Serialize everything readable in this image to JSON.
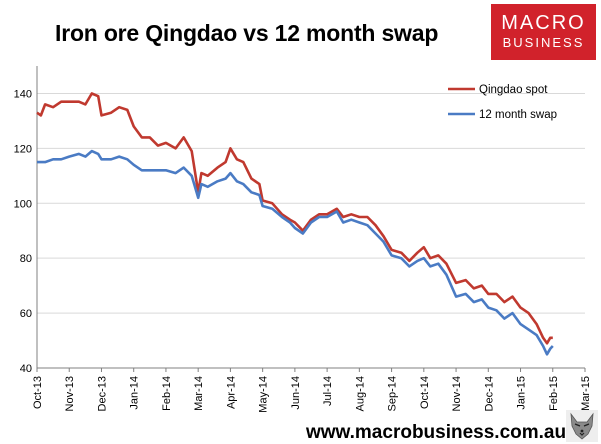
{
  "header": {
    "title": "Iron ore Qingdao vs 12 month swap",
    "logo_line1": "MACRO",
    "logo_line2": "BUSINESS",
    "website": "www.macrobusiness.com.au"
  },
  "colors": {
    "spot": "#c0392f",
    "swap": "#4a7bc4",
    "logo_bg": "#d1222b"
  },
  "icons": {
    "wolf": "wolf-logo-icon"
  },
  "chart_data": {
    "type": "line",
    "title": "Iron ore Qingdao vs 12 month swap",
    "xlabel": "",
    "ylabel": "",
    "ylim": [
      40,
      150
    ],
    "yticks": [
      40,
      60,
      80,
      100,
      120,
      140
    ],
    "xticks": [
      "Oct-13",
      "Nov-13",
      "Dec-13",
      "Jan-14",
      "Feb-14",
      "Mar-14",
      "Apr-14",
      "May-14",
      "Jun-14",
      "Jul-14",
      "Aug-14",
      "Sep-14",
      "Oct-14",
      "Nov-14",
      "Dec-14",
      "Jan-15",
      "Feb-15",
      "Mar-15"
    ],
    "grid": true,
    "legend_position": "top-right",
    "series": [
      {
        "name": "Qingdao spot",
        "color": "#c0392f",
        "points": [
          [
            "Oct-13",
            133
          ],
          [
            "Oct-13+0.12",
            132
          ],
          [
            "Oct-13+0.25",
            136
          ],
          [
            "Oct-13+0.5",
            135
          ],
          [
            "Oct-13+0.75",
            137
          ],
          [
            "Nov-13",
            137
          ],
          [
            "Nov-13+0.3",
            137
          ],
          [
            "Nov-13+0.5",
            136
          ],
          [
            "Nov-13+0.7",
            140
          ],
          [
            "Nov-13+0.9",
            139
          ],
          [
            "Dec-13",
            132
          ],
          [
            "Dec-13+0.3",
            133
          ],
          [
            "Dec-13+0.55",
            135
          ],
          [
            "Dec-13+0.8",
            134
          ],
          [
            "Jan-14",
            128
          ],
          [
            "Jan-14+0.25",
            124
          ],
          [
            "Jan-14+0.5",
            124
          ],
          [
            "Jan-14+0.75",
            121
          ],
          [
            "Feb-14",
            122
          ],
          [
            "Feb-14+0.3",
            120
          ],
          [
            "Feb-14+0.55",
            124
          ],
          [
            "Feb-14+0.8",
            119
          ],
          [
            "Mar-14",
            104
          ],
          [
            "Mar-14+0.1",
            111
          ],
          [
            "Mar-14+0.3",
            110
          ],
          [
            "Mar-14+0.6",
            113
          ],
          [
            "Mar-14+0.85",
            115
          ],
          [
            "Apr-14",
            120
          ],
          [
            "Apr-14+0.2",
            116
          ],
          [
            "Apr-14+0.4",
            115
          ],
          [
            "Apr-14+0.65",
            109
          ],
          [
            "Apr-14+0.9",
            107
          ],
          [
            "May-14",
            101
          ],
          [
            "May-14+0.3",
            100
          ],
          [
            "May-14+0.6",
            96
          ],
          [
            "May-14+0.85",
            94
          ],
          [
            "Jun-14",
            93
          ],
          [
            "Jun-14+0.25",
            90
          ],
          [
            "Jun-14+0.5",
            94
          ],
          [
            "Jun-14+0.75",
            96
          ],
          [
            "Jul-14",
            96
          ],
          [
            "Jul-14+0.3",
            98
          ],
          [
            "Jul-14+0.5",
            95
          ],
          [
            "Jul-14+0.75",
            96
          ],
          [
            "Aug-14",
            95
          ],
          [
            "Aug-14+0.25",
            95
          ],
          [
            "Aug-14+0.5",
            92
          ],
          [
            "Aug-14+0.75",
            88
          ],
          [
            "Sep-14",
            83
          ],
          [
            "Sep-14+0.3",
            82
          ],
          [
            "Sep-14+0.55",
            79
          ],
          [
            "Sep-14+0.8",
            82
          ],
          [
            "Oct-14",
            84
          ],
          [
            "Oct-14+0.2",
            80
          ],
          [
            "Oct-14+0.45",
            81
          ],
          [
            "Oct-14+0.7",
            78
          ],
          [
            "Nov-14",
            71
          ],
          [
            "Nov-14+0.3",
            72
          ],
          [
            "Nov-14+0.55",
            69
          ],
          [
            "Nov-14+0.8",
            70
          ],
          [
            "Dec-14",
            67
          ],
          [
            "Dec-14+0.25",
            67
          ],
          [
            "Dec-14+0.5",
            64
          ],
          [
            "Dec-14+0.75",
            66
          ],
          [
            "Jan-15",
            62
          ],
          [
            "Jan-15+0.25",
            60
          ],
          [
            "Jan-15+0.5",
            56
          ],
          [
            "Jan-15+0.7",
            51
          ],
          [
            "Jan-15+0.82",
            49
          ],
          [
            "Jan-15+0.92",
            51
          ],
          [
            "Feb-15",
            51
          ]
        ]
      },
      {
        "name": "12 month swap",
        "color": "#4a7bc4",
        "points": [
          [
            "Oct-13",
            115
          ],
          [
            "Oct-13+0.25",
            115
          ],
          [
            "Oct-13+0.5",
            116
          ],
          [
            "Oct-13+0.75",
            116
          ],
          [
            "Nov-13",
            117
          ],
          [
            "Nov-13+0.3",
            118
          ],
          [
            "Nov-13+0.5",
            117
          ],
          [
            "Nov-13+0.7",
            119
          ],
          [
            "Nov-13+0.9",
            118
          ],
          [
            "Dec-13",
            116
          ],
          [
            "Dec-13+0.3",
            116
          ],
          [
            "Dec-13+0.55",
            117
          ],
          [
            "Dec-13+0.8",
            116
          ],
          [
            "Jan-14",
            114
          ],
          [
            "Jan-14+0.25",
            112
          ],
          [
            "Jan-14+0.5",
            112
          ],
          [
            "Jan-14+0.75",
            112
          ],
          [
            "Feb-14",
            112
          ],
          [
            "Feb-14+0.3",
            111
          ],
          [
            "Feb-14+0.55",
            113
          ],
          [
            "Feb-14+0.8",
            110
          ],
          [
            "Mar-14",
            102
          ],
          [
            "Mar-14+0.1",
            107
          ],
          [
            "Mar-14+0.3",
            106
          ],
          [
            "Mar-14+0.6",
            108
          ],
          [
            "Mar-14+0.85",
            109
          ],
          [
            "Apr-14",
            111
          ],
          [
            "Apr-14+0.2",
            108
          ],
          [
            "Apr-14+0.4",
            107
          ],
          [
            "Apr-14+0.65",
            104
          ],
          [
            "Apr-14+0.9",
            103
          ],
          [
            "May-14",
            99
          ],
          [
            "May-14+0.3",
            98
          ],
          [
            "May-14+0.6",
            95
          ],
          [
            "May-14+0.85",
            93
          ],
          [
            "Jun-14",
            91
          ],
          [
            "Jun-14+0.25",
            89
          ],
          [
            "Jun-14+0.5",
            93
          ],
          [
            "Jun-14+0.75",
            95
          ],
          [
            "Jul-14",
            95
          ],
          [
            "Jul-14+0.3",
            97
          ],
          [
            "Jul-14+0.5",
            93
          ],
          [
            "Jul-14+0.75",
            94
          ],
          [
            "Aug-14",
            93
          ],
          [
            "Aug-14+0.25",
            92
          ],
          [
            "Aug-14+0.5",
            89
          ],
          [
            "Aug-14+0.75",
            86
          ],
          [
            "Sep-14",
            81
          ],
          [
            "Sep-14+0.3",
            80
          ],
          [
            "Sep-14+0.55",
            77
          ],
          [
            "Sep-14+0.8",
            79
          ],
          [
            "Oct-14",
            80
          ],
          [
            "Oct-14+0.2",
            77
          ],
          [
            "Oct-14+0.45",
            78
          ],
          [
            "Oct-14+0.7",
            74
          ],
          [
            "Nov-14",
            66
          ],
          [
            "Nov-14+0.3",
            67
          ],
          [
            "Nov-14+0.55",
            64
          ],
          [
            "Nov-14+0.8",
            65
          ],
          [
            "Dec-14",
            62
          ],
          [
            "Dec-14+0.25",
            61
          ],
          [
            "Dec-14+0.5",
            58
          ],
          [
            "Dec-14+0.75",
            60
          ],
          [
            "Jan-15",
            56
          ],
          [
            "Jan-15+0.25",
            54
          ],
          [
            "Jan-15+0.5",
            52
          ],
          [
            "Jan-15+0.7",
            48
          ],
          [
            "Jan-15+0.82",
            45
          ],
          [
            "Jan-15+0.92",
            47
          ],
          [
            "Feb-15",
            48
          ]
        ]
      }
    ]
  }
}
